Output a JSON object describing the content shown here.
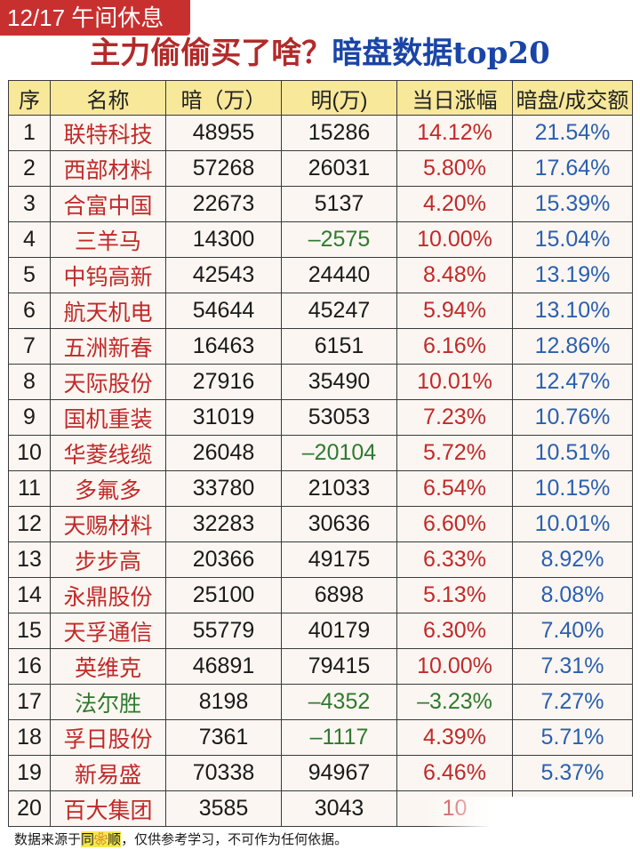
{
  "tag": "12/17 午间休息",
  "headline": {
    "part1": "主力偷偷买了啥？",
    "part2": "暗盘数据top20"
  },
  "table": {
    "headers": [
      "序",
      "名称",
      "暗（万）",
      "明(万)",
      "当日涨幅",
      "暗盘/成交额"
    ],
    "rows": [
      {
        "rank": "1",
        "name": "联特科技",
        "dark": "48955",
        "lit": "15286",
        "chg": "14.12%",
        "ratio": "21.54%"
      },
      {
        "rank": "2",
        "name": "西部材料",
        "dark": "57268",
        "lit": "26031",
        "chg": "5.80%",
        "ratio": "17.64%"
      },
      {
        "rank": "3",
        "name": "合富中国",
        "dark": "22673",
        "lit": "5137",
        "chg": "4.20%",
        "ratio": "15.39%"
      },
      {
        "rank": "4",
        "name": "三羊马",
        "dark": "14300",
        "lit": "–2575",
        "chg": "10.00%",
        "ratio": "15.04%"
      },
      {
        "rank": "5",
        "name": "中钨高新",
        "dark": "42543",
        "lit": "24440",
        "chg": "8.48%",
        "ratio": "13.19%"
      },
      {
        "rank": "6",
        "name": "航天机电",
        "dark": "54644",
        "lit": "45247",
        "chg": "5.94%",
        "ratio": "13.10%"
      },
      {
        "rank": "7",
        "name": "五洲新春",
        "dark": "16463",
        "lit": "6151",
        "chg": "6.16%",
        "ratio": "12.86%"
      },
      {
        "rank": "8",
        "name": "天际股份",
        "dark": "27916",
        "lit": "35490",
        "chg": "10.01%",
        "ratio": "12.47%"
      },
      {
        "rank": "9",
        "name": "国机重装",
        "dark": "31019",
        "lit": "53053",
        "chg": "7.23%",
        "ratio": "10.76%"
      },
      {
        "rank": "10",
        "name": "华菱线缆",
        "dark": "26048",
        "lit": "–20104",
        "chg": "5.72%",
        "ratio": "10.51%"
      },
      {
        "rank": "11",
        "name": "多氟多",
        "dark": "33780",
        "lit": "21033",
        "chg": "6.54%",
        "ratio": "10.15%"
      },
      {
        "rank": "12",
        "name": "天赐材料",
        "dark": "32283",
        "lit": "30636",
        "chg": "6.60%",
        "ratio": "10.01%"
      },
      {
        "rank": "13",
        "name": "步步高",
        "dark": "20366",
        "lit": "49175",
        "chg": "6.33%",
        "ratio": "8.92%"
      },
      {
        "rank": "14",
        "name": "永鼎股份",
        "dark": "25100",
        "lit": "6898",
        "chg": "5.13%",
        "ratio": "8.08%"
      },
      {
        "rank": "15",
        "name": "天孚通信",
        "dark": "55779",
        "lit": "40179",
        "chg": "6.30%",
        "ratio": "7.40%"
      },
      {
        "rank": "16",
        "name": "英维克",
        "dark": "46891",
        "lit": "79415",
        "chg": "10.00%",
        "ratio": "7.31%"
      },
      {
        "rank": "17",
        "name": "法尔胜",
        "dark": "8198",
        "lit": "–4352",
        "chg": "–3.23%",
        "ratio": "7.27%"
      },
      {
        "rank": "18",
        "name": "孚日股份",
        "dark": "7361",
        "lit": "–1117",
        "chg": "4.39%",
        "ratio": "5.71%"
      },
      {
        "rank": "19",
        "name": "新易盛",
        "dark": "70338",
        "lit": "94967",
        "chg": "6.46%",
        "ratio": "5.37%"
      },
      {
        "rank": "20",
        "name": "百大集团",
        "dark": "3585",
        "lit": "3043",
        "chg": "10",
        "ratio": ""
      }
    ]
  },
  "footer": {
    "before": "数据来源于",
    "highlight1": "同",
    "flower": "❀",
    "highlight2": "顺",
    "after": "，仅供参考学习，不可作为任何依据。"
  },
  "colors": {
    "tag_bg": "#c8302f",
    "header_bg": "#f7e89a",
    "up_red": "#c02a2a",
    "down_green": "#2f7a2f",
    "ratio_blue": "#2a5fb0",
    "title_blue": "#1a45a6"
  }
}
